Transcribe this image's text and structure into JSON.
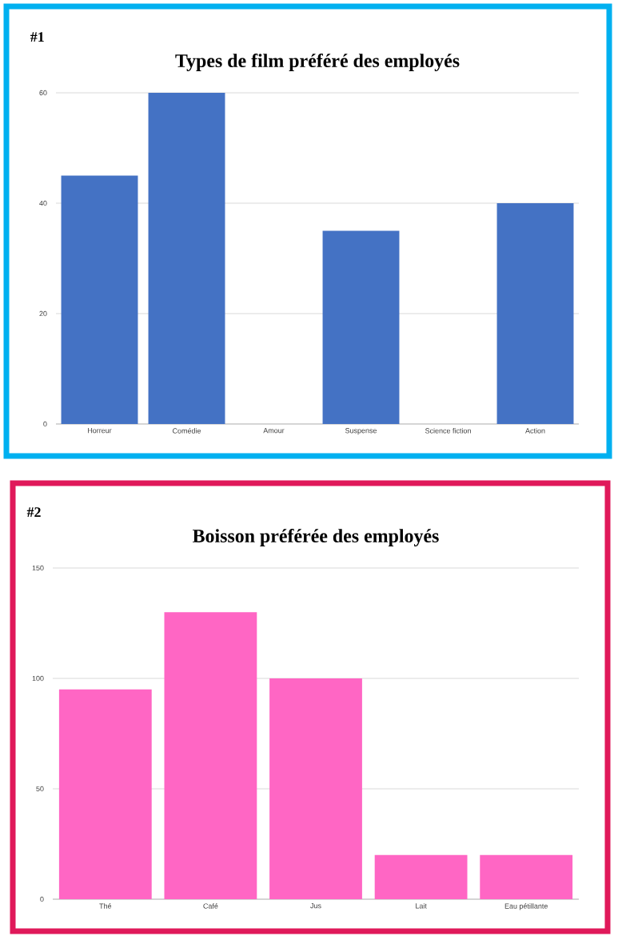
{
  "chart_data": [
    {
      "type": "bar",
      "title": "Types de film préféré des employés",
      "annotations": [
        "#1"
      ],
      "categories": [
        "Horreur",
        "Comédie",
        "Amour",
        "Suspense",
        "Science fiction",
        "Action"
      ],
      "values": [
        45,
        60,
        0,
        35,
        0,
        40
      ],
      "color": "#4472c4",
      "ylim": [
        0,
        60
      ],
      "yticks": [
        0,
        20,
        40,
        60
      ],
      "grid": "y"
    },
    {
      "type": "bar",
      "title": "Boisson préférée des employés",
      "annotations": [
        "#2"
      ],
      "categories": [
        "Thé",
        "Café",
        "Jus",
        "Lait",
        "Eau pétillante"
      ],
      "values": [
        95,
        130,
        100,
        20,
        20
      ],
      "color": "#ff66c4",
      "ylim": [
        0,
        150
      ],
      "yticks": [
        0,
        50,
        100,
        150
      ],
      "grid": "y"
    }
  ]
}
